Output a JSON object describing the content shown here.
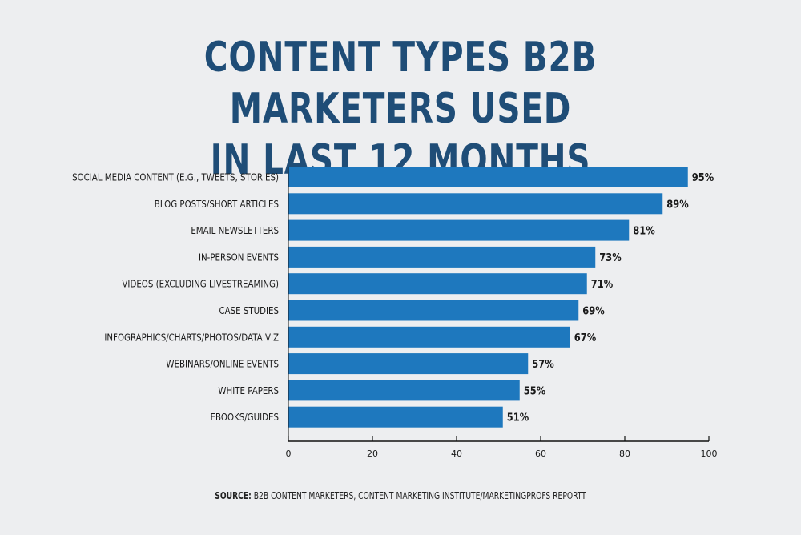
{
  "chart_data": {
    "type": "bar",
    "orientation": "horizontal",
    "title_lines": [
      "CONTENT TYPES B2B MARKETERS USED",
      "IN LAST 12 MONTHS"
    ],
    "categories": [
      "SOCIAL MEDIA CONTENT (E.G., TWEETS, STORIES)",
      "BLOG POSTS/SHORT ARTICLES",
      "EMAIL NEWSLETTERS",
      "IN-PERSON EVENTS",
      "VIDEOS (EXCLUDING LIVESTREAMING)",
      "CASE STUDIES",
      "INFOGRAPHICS/CHARTS/PHOTOS/DATA VIZ",
      "WEBINARS/ONLINE EVENTS",
      "WHITE PAPERS",
      "EBOOKS/GUIDES"
    ],
    "values": [
      95,
      89,
      81,
      73,
      71,
      69,
      67,
      57,
      55,
      51
    ],
    "value_labels": [
      "95%",
      "89%",
      "81%",
      "73%",
      "71%",
      "69%",
      "67%",
      "57%",
      "55%",
      "51%"
    ],
    "xlim": [
      0,
      100
    ],
    "xticks": [
      0,
      20,
      40,
      60,
      80,
      100
    ],
    "grid": false,
    "bar_color": "#1e78be"
  },
  "source": {
    "label": "SOURCE:",
    "text": " B2B CONTENT MARKETERS, CONTENT MARKETING INSTITUTE/MARKETINGPROFS REPORTT"
  }
}
